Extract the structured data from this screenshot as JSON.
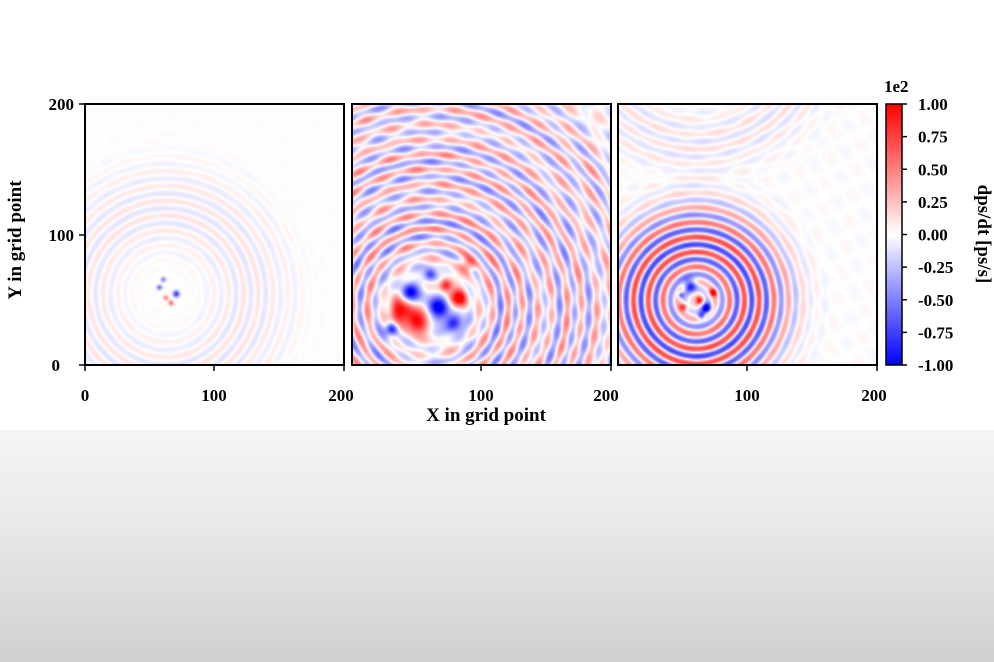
{
  "chart_data": {
    "type": "heatmap",
    "colormap": "bwr",
    "colors": {
      "negative": "#0000ff",
      "zero": "#ffffff",
      "positive": "#ff0000"
    },
    "xlabel": "X in grid point",
    "ylabel": "Y in grid point",
    "xlim": [
      0,
      200
    ],
    "ylim": [
      0,
      200
    ],
    "x_ticks": [
      "0",
      "100",
      "200"
    ],
    "y_ticks": [
      "0",
      "100",
      "200"
    ],
    "panels": [
      {
        "source": {
          "x": 62,
          "y": 55
        },
        "amplitude": 0.08,
        "wave_fronts": [
          {
            "cx": 62,
            "cy": 55,
            "radius": 50,
            "amp": 0.06
          },
          {
            "cx": 62,
            "cy": 55,
            "radius": 70,
            "amp": 0.05
          },
          {
            "cx": 62,
            "cy": 55,
            "radius": 90,
            "amp": 0.04
          }
        ],
        "blobs": [
          {
            "x": 57,
            "y": 60,
            "value": -0.6,
            "r": 2
          },
          {
            "x": 62,
            "y": 52,
            "value": 0.5,
            "r": 2
          },
          {
            "x": 70,
            "y": 55,
            "value": -0.8,
            "r": 2.5
          },
          {
            "x": 66,
            "y": 48,
            "value": 0.6,
            "r": 2
          },
          {
            "x": 60,
            "y": 66,
            "value": -0.5,
            "r": 2
          }
        ]
      },
      {
        "source": {
          "x": 60,
          "y": 45
        },
        "amplitude": 0.35,
        "wave_fronts": [
          {
            "cx": 60,
            "cy": 45,
            "radius": 60,
            "amp": 0.4
          },
          {
            "cx": 60,
            "cy": 45,
            "radius": 110,
            "amp": 0.35
          },
          {
            "cx": 60,
            "cy": 45,
            "radius": 160,
            "amp": 0.3
          }
        ],
        "blobs": [
          {
            "x": 38,
            "y": 43,
            "value": 1.0,
            "r": 10
          },
          {
            "x": 50,
            "y": 34,
            "value": 1.0,
            "r": 9
          },
          {
            "x": 65,
            "y": 44,
            "value": -1.0,
            "r": 9
          },
          {
            "x": 44,
            "y": 55,
            "value": -1.0,
            "r": 8
          },
          {
            "x": 78,
            "y": 32,
            "value": -1.0,
            "r": 7
          },
          {
            "x": 82,
            "y": 52,
            "value": 1.0,
            "r": 7
          },
          {
            "x": 72,
            "y": 62,
            "value": 1.0,
            "r": 5
          },
          {
            "x": 30,
            "y": 28,
            "value": -1.0,
            "r": 5
          },
          {
            "x": 90,
            "y": 78,
            "value": 0.7,
            "r": 6
          },
          {
            "x": 60,
            "y": 70,
            "value": -0.8,
            "r": 5
          }
        ]
      },
      {
        "source": {
          "x": 60,
          "y": 50
        },
        "amplitude": 0.25,
        "wave_fronts": [
          {
            "cx": 60,
            "cy": 50,
            "radius": 30,
            "amp": 0.35
          },
          {
            "cx": 60,
            "cy": 50,
            "radius": 45,
            "amp": 0.3
          },
          {
            "cx": 60,
            "cy": 50,
            "radius": 60,
            "amp": 0.25
          },
          {
            "cx": 60,
            "cy": 260,
            "radius": 90,
            "amp": 0.12
          }
        ],
        "blobs": [
          {
            "x": 55,
            "y": 62,
            "value": -1.0,
            "r": 5
          },
          {
            "x": 68,
            "y": 44,
            "value": -1.0,
            "r": 4
          },
          {
            "x": 62,
            "y": 50,
            "value": 0.9,
            "r": 3
          },
          {
            "x": 50,
            "y": 45,
            "value": 0.8,
            "r": 3
          },
          {
            "x": 73,
            "y": 56,
            "value": 0.9,
            "r": 3
          },
          {
            "x": 64,
            "y": 38,
            "value": -0.8,
            "r": 3
          },
          {
            "x": 48,
            "y": 54,
            "value": -0.7,
            "r": 2.5
          }
        ]
      }
    ],
    "colorbar": {
      "label": "dps/dt [ps/s]",
      "scale_label": "1e2",
      "min": -1.0,
      "max": 1.0,
      "ticks": [
        "1.00",
        "0.75",
        "0.50",
        "0.25",
        "0.00",
        "-0.25",
        "-0.50",
        "-0.75",
        "-1.00"
      ]
    }
  }
}
